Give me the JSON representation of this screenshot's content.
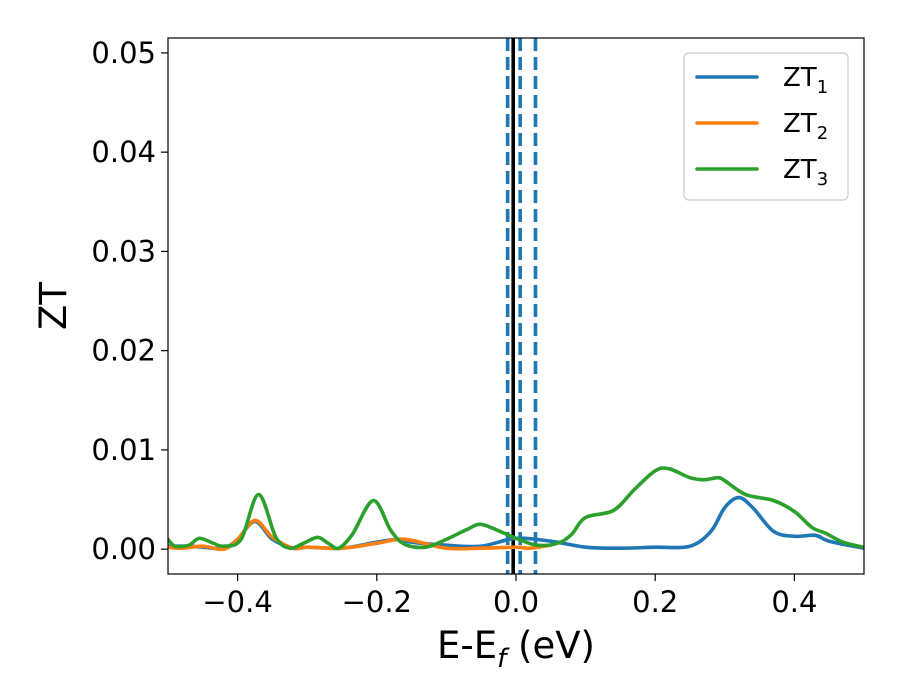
{
  "chart_data": {
    "type": "line",
    "title": "",
    "xlabel": "E-E",
    "xlabel_sub": "f",
    "xlabel_suffix": " (eV)",
    "ylabel": "ZT",
    "xlim": [
      -0.5,
      0.5
    ],
    "ylim": [
      -0.0025,
      0.0515
    ],
    "xticks": [
      -0.4,
      -0.2,
      0.0,
      0.2,
      0.4
    ],
    "xtick_labels": [
      "−0.4",
      "−0.2",
      "0.0",
      "0.2",
      "0.4"
    ],
    "yticks": [
      0.0,
      0.01,
      0.02,
      0.03,
      0.04,
      0.05
    ],
    "ytick_labels": [
      "0.00",
      "0.01",
      "0.02",
      "0.03",
      "0.04",
      "0.05"
    ],
    "grid": false,
    "legend_position": "top-right",
    "series": [
      {
        "name": "ZT",
        "name_sub": "1",
        "color": "#1f77b4",
        "x": [
          -0.5,
          -0.47,
          -0.45,
          -0.42,
          -0.4,
          -0.375,
          -0.35,
          -0.32,
          -0.3,
          -0.25,
          -0.2,
          -0.17,
          -0.15,
          -0.1,
          -0.05,
          0.0,
          0.05,
          0.1,
          0.15,
          0.2,
          0.25,
          0.28,
          0.3,
          0.32,
          0.34,
          0.37,
          0.4,
          0.43,
          0.45,
          0.5
        ],
        "y": [
          0.0003,
          0.0003,
          0.0002,
          0.0001,
          0.001,
          0.0028,
          0.001,
          0.0001,
          0.0002,
          0.0001,
          0.0007,
          0.001,
          0.0007,
          0.0004,
          0.0003,
          0.0011,
          0.0008,
          0.0002,
          0.0001,
          0.0002,
          0.0003,
          0.0018,
          0.0042,
          0.0052,
          0.0042,
          0.0018,
          0.0013,
          0.0014,
          0.0008,
          0.0001
        ]
      },
      {
        "name": "ZT",
        "name_sub": "2",
        "color": "#ff7f0e",
        "x": [
          -0.5,
          -0.48,
          -0.45,
          -0.42,
          -0.4,
          -0.375,
          -0.35,
          -0.32,
          -0.3,
          -0.25,
          -0.2,
          -0.17,
          -0.15,
          -0.1,
          -0.05,
          0.0,
          0.02,
          0.05
        ],
        "y": [
          0.0002,
          0.0001,
          0.0003,
          0.0,
          0.001,
          0.0029,
          0.0012,
          0.0001,
          0.0002,
          0.0001,
          0.0006,
          0.001,
          0.0009,
          0.0001,
          0.0001,
          0.0002,
          0.0001,
          0.0004
        ]
      },
      {
        "name": "ZT",
        "name_sub": "3",
        "color": "#2ca02c",
        "x": [
          -0.5,
          -0.49,
          -0.47,
          -0.455,
          -0.435,
          -0.42,
          -0.395,
          -0.37,
          -0.345,
          -0.325,
          -0.305,
          -0.285,
          -0.27,
          -0.255,
          -0.235,
          -0.205,
          -0.18,
          -0.16,
          -0.13,
          -0.1,
          -0.07,
          -0.05,
          -0.02,
          0.0,
          0.03,
          0.06,
          0.08,
          0.1,
          0.14,
          0.17,
          0.2,
          0.22,
          0.25,
          0.27,
          0.29,
          0.3,
          0.33,
          0.37,
          0.4,
          0.425,
          0.445,
          0.47,
          0.5
        ],
        "y": [
          0.001,
          0.0003,
          0.0004,
          0.0011,
          0.0006,
          0.0003,
          0.001,
          0.0055,
          0.0012,
          0.0001,
          0.0006,
          0.0012,
          0.0006,
          0.0001,
          0.0015,
          0.0049,
          0.0019,
          0.0005,
          0.0002,
          0.001,
          0.002,
          0.0025,
          0.0017,
          0.0011,
          0.0004,
          0.0006,
          0.0015,
          0.0032,
          0.0039,
          0.006,
          0.0079,
          0.0081,
          0.0072,
          0.007,
          0.0072,
          0.0069,
          0.0055,
          0.0049,
          0.0038,
          0.0022,
          0.0016,
          0.0007,
          0.0002
        ]
      }
    ],
    "vlines": [
      {
        "x": -0.004,
        "color": "#000000",
        "style": "solid"
      },
      {
        "x": -0.012,
        "color": "#1f77b4",
        "style": "dashed"
      },
      {
        "x": 0.006,
        "color": "#1f77b4",
        "style": "dashed"
      },
      {
        "x": 0.028,
        "color": "#1f77b4",
        "style": "dashed"
      }
    ]
  }
}
